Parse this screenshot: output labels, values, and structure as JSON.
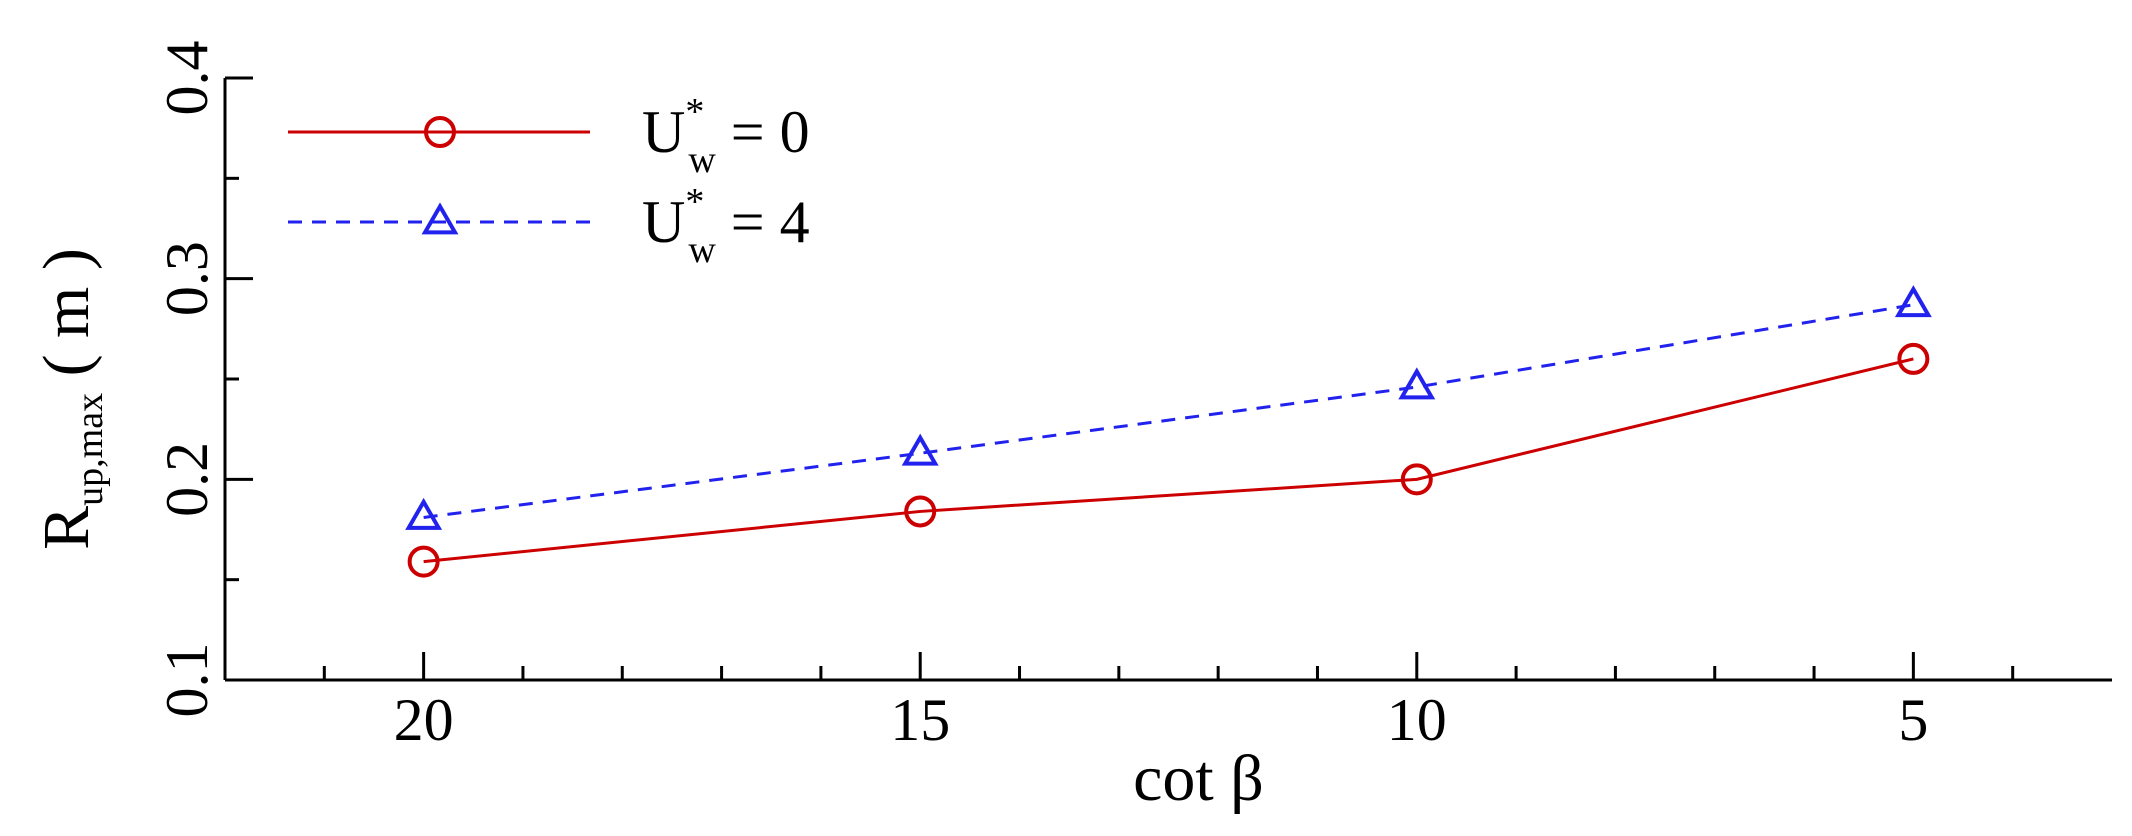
{
  "chart_data": {
    "type": "line",
    "title": "",
    "xlabel": "cot β",
    "ylabel": {
      "main": "R",
      "sub": "up,max",
      "unit": " ( m )"
    },
    "x_reversed": true,
    "xlim": [
      22,
      3
    ],
    "ylim": [
      0.1,
      0.4
    ],
    "x_ticks": [
      20,
      15,
      10,
      5
    ],
    "x_tick_labels": [
      "20",
      "15",
      "10",
      "5"
    ],
    "y_ticks": [
      0.1,
      0.2,
      0.3,
      0.4
    ],
    "y_tick_labels": [
      "0.1",
      "0.2",
      "0.3",
      "0.4"
    ],
    "grid": false,
    "legend_position": "top-left",
    "x": [
      20,
      15,
      10,
      5
    ],
    "series": [
      {
        "legend": {
          "base": "U",
          "sup": "*",
          "sub": "w",
          "rest": " = 0"
        },
        "values": [
          0.159,
          0.184,
          0.2,
          0.26
        ],
        "color": "#cc0000",
        "marker": "circle",
        "dash": "solid"
      },
      {
        "legend": {
          "base": "U",
          "sup": "*",
          "sub": "w",
          "rest": " = 4"
        },
        "values": [
          0.181,
          0.213,
          0.246,
          0.287
        ],
        "color": "#2222ee",
        "marker": "triangle",
        "dash": "dashed"
      }
    ]
  }
}
